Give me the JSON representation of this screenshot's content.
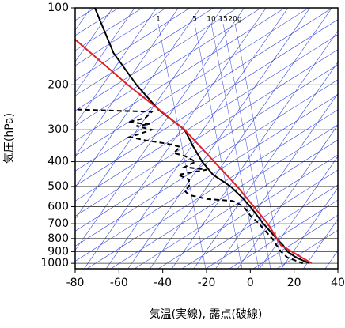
{
  "chart_data": {
    "type": "line",
    "xlabel": "気温(実線), 露点(破線)",
    "ylabel": "気圧(hPa)",
    "xlim": [
      -80,
      40
    ],
    "xticks": [
      -80,
      -60,
      -40,
      -20,
      0,
      20,
      40
    ],
    "ylim": [
      1050,
      100
    ],
    "yticks": [
      100,
      200,
      300,
      400,
      500,
      600,
      700,
      800,
      900,
      1000
    ],
    "log_y": true,
    "grid": true,
    "mixing_ratio_labels": [
      "1",
      "5",
      "10",
      "15",
      "20g"
    ],
    "series": [
      {
        "color": "#000000",
        "dash": false,
        "pressure": [
          100,
          150,
          200,
          250,
          300,
          350,
          400,
          450,
          500,
          550,
          600,
          700,
          800,
          850,
          900,
          950,
          1000
        ],
        "values": [
          -71,
          -62.5,
          -52,
          -42,
          -30,
          -26,
          -22,
          -17,
          -9,
          -4,
          0,
          6,
          12,
          15,
          17,
          21,
          27
        ]
      },
      {
        "color": "#e0202a",
        "dash": false,
        "pressure": [
          133,
          200,
          300,
          500,
          700,
          850,
          1000
        ],
        "values": [
          -80,
          -56,
          -30,
          -6,
          8,
          14,
          28
        ]
      },
      {
        "color": "#000000",
        "dash": true,
        "pressure": [
          250,
          255,
          270,
          280,
          285,
          290,
          300,
          320,
          330,
          340,
          350,
          370,
          380,
          400,
          420,
          430,
          450,
          470,
          500,
          520,
          540,
          560,
          570,
          600,
          650,
          700,
          800,
          850,
          900,
          950,
          1000
        ],
        "values": [
          -79,
          -45,
          -48,
          -56,
          -46,
          -52,
          -45,
          -55,
          -48,
          -38,
          -32,
          -35,
          -30,
          -25,
          -30,
          -20,
          -33,
          -28,
          -28,
          -30,
          -28,
          -20,
          -8,
          -3,
          0,
          4,
          10,
          12,
          14,
          17,
          24
        ]
      }
    ]
  }
}
